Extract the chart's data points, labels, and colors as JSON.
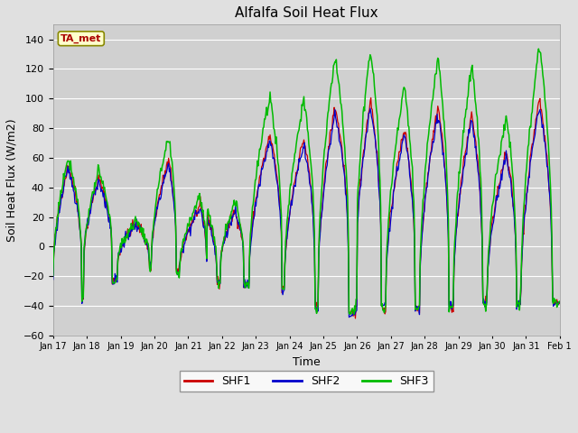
{
  "title": "Alfalfa Soil Heat Flux",
  "xlabel": "Time",
  "ylabel": "Soil Heat Flux (W/m2)",
  "ylim": [
    -60,
    150
  ],
  "yticks": [
    -60,
    -40,
    -20,
    0,
    20,
    40,
    60,
    80,
    100,
    120,
    140
  ],
  "bg_color": "#e0e0e0",
  "plot_bg_color": "#d0d0d0",
  "line_colors": {
    "SHF1": "#cc0000",
    "SHF2": "#0000cc",
    "SHF3": "#00bb00"
  },
  "annotation_text": "TA_met",
  "annotation_color": "#aa0000",
  "annotation_bg": "#ffffcc",
  "tick_labels": [
    "Jan 17",
    "Jan 18",
    "Jan 19",
    "Jan 20",
    "Jan 21",
    "Jan 22",
    "Jan 23",
    "Jan 24",
    "Jan 25",
    "Jan 26",
    "Jan 27",
    "Jan 28",
    "Jan 29",
    "Jan 30",
    "Jan 31",
    "Feb 1"
  ]
}
